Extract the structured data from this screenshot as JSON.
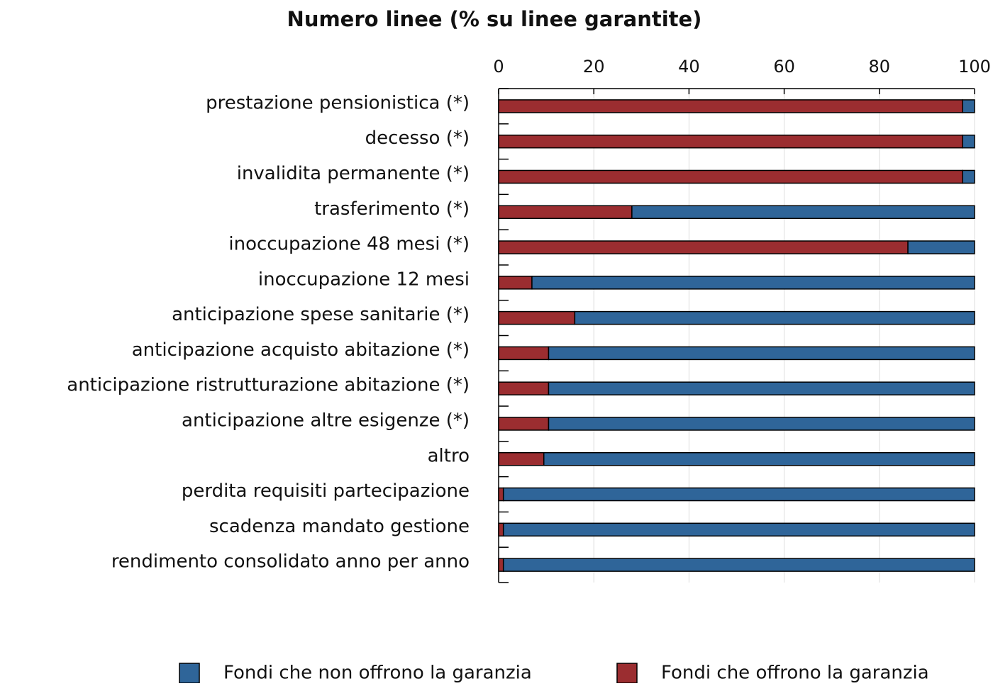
{
  "chart_data": {
    "type": "stacked_bar_horizontal",
    "title": "Numero linee (% su linee garantite)",
    "categories": [
      "prestazione pensionistica (*)",
      "decesso (*)",
      "invalidita permanente (*)",
      "trasferimento (*)",
      "inoccupazione 48 mesi (*)",
      "inoccupazione 12 mesi",
      "anticipazione spese sanitarie (*)",
      "anticipazione acquisto abitazione (*)",
      "anticipazione ristrutturazione abitazione (*)",
      "anticipazione altre esigenze (*)",
      "altro",
      "perdita requisiti partecipazione",
      "scadenza mandato gestione",
      "rendimento consolidato anno per anno"
    ],
    "series": [
      {
        "name": "Fondi che non offrono la garanzia",
        "color": "#2f6599",
        "values": [
          2.5,
          2.5,
          2.5,
          72,
          14,
          93,
          84,
          89.5,
          89.5,
          89.5,
          90.5,
          99,
          99,
          99
        ]
      },
      {
        "name": "Fondi che offrono la garanzia",
        "color": "#9b2d30",
        "values": [
          97.5,
          97.5,
          97.5,
          28,
          86,
          7,
          16,
          10.5,
          10.5,
          10.5,
          9.5,
          1,
          1,
          1
        ]
      }
    ],
    "xlim": [
      0,
      100
    ],
    "xticks": [
      0,
      20,
      40,
      60,
      80,
      100
    ],
    "grid": true,
    "legend": "bottom"
  }
}
